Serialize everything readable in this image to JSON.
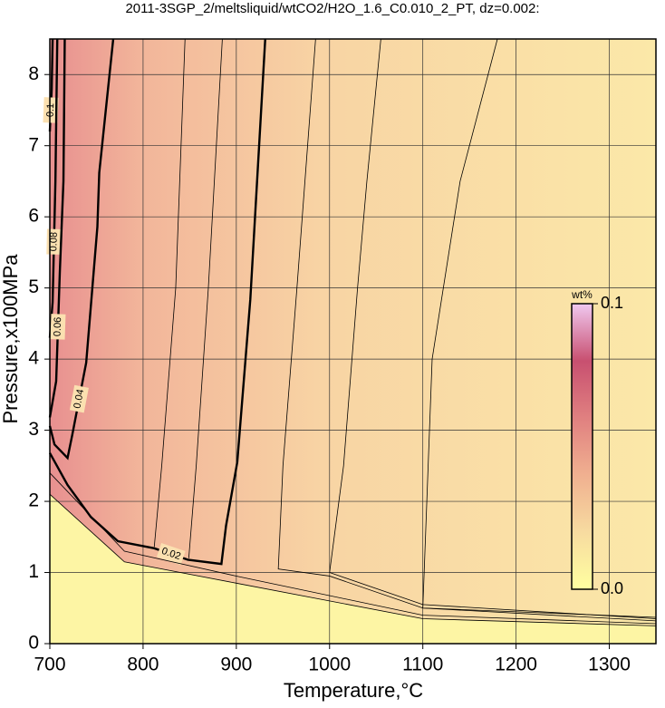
{
  "chart_data": {
    "type": "contour",
    "title": "2011-3SGP_2/meltsliquid/wtCO2/H2O_1.6_C0.010_2_PT, dz=0.002:",
    "x_label": "Temperature,°C",
    "y_label": "Pressure,x100MPa",
    "xlim": [
      700,
      1350
    ],
    "ylim": [
      0,
      8.5
    ],
    "xticks": [
      700,
      800,
      900,
      1000,
      1100,
      1200,
      1300
    ],
    "yticks": [
      0,
      1,
      2,
      3,
      4,
      5,
      6,
      7,
      8
    ],
    "grid": true,
    "contours": [
      {
        "level": 0.1,
        "bold": true,
        "x": [
          703,
          702,
          700
        ],
        "y": [
          8.5,
          7.8,
          7.2
        ]
      },
      {
        "level": 0.08,
        "bold": true,
        "x": [
          708,
          706,
          703,
          700
        ],
        "y": [
          8.5,
          6.5,
          4.8,
          4.3
        ]
      },
      {
        "level": 0.06,
        "bold": true,
        "x": [
          716,
          714.6,
          710.7,
          706.8,
          700
        ],
        "y": [
          8.5,
          6.5,
          5.22,
          3.69,
          3.18
        ]
      },
      {
        "level": 0.04,
        "bold": true,
        "x": [
          768,
          753,
          751,
          739,
          724,
          719,
          705,
          700
        ],
        "y": [
          8.5,
          6.62,
          5.86,
          3.95,
          2.93,
          2.61,
          2.8,
          3.06
        ]
      },
      {
        "level": 0.03,
        "bold": false,
        "x": [
          845,
          835,
          820,
          812
        ],
        "y": [
          8.5,
          5,
          2.5,
          1.36
        ]
      },
      {
        "level": 0.025,
        "bold": false,
        "x": [
          885,
          870,
          857,
          849
        ],
        "y": [
          8.5,
          5,
          2.5,
          1.2
        ]
      },
      {
        "level": 0.02,
        "bold": true,
        "x": [
          931,
          915,
          901,
          889,
          884,
          848,
          812,
          773,
          744,
          719,
          700
        ],
        "y": [
          8.5,
          4.84,
          2.55,
          1.66,
          1.12,
          1.18,
          1.34,
          1.44,
          1.78,
          2.23,
          2.68
        ]
      },
      {
        "level": 0.015,
        "bold": false,
        "x": [
          985,
          965,
          950,
          945,
          1000,
          1100,
          1350
        ],
        "y": [
          8.5,
          5,
          2.5,
          1.05,
          0.95,
          0.5,
          0.37
        ]
      },
      {
        "level": 0.01,
        "bold": false,
        "x": [
          1055,
          1040,
          1030,
          1015,
          1000,
          1100,
          1350
        ],
        "y": [
          8.5,
          6.5,
          5,
          2.5,
          1.0,
          0.55,
          0.35
        ]
      },
      {
        "level": 0.005,
        "bold": false,
        "x": [
          1180,
          1140,
          1110,
          1100,
          1350
        ],
        "y": [
          8.5,
          6.5,
          4,
          0.5,
          0.32
        ]
      },
      {
        "level": 0.002,
        "bold": false,
        "x": [
          700,
          780,
          900,
          1100,
          1350
        ],
        "y": [
          2.4,
          1.3,
          0.95,
          0.4,
          0.28
        ]
      },
      {
        "level": 0.001,
        "bold": false,
        "x": [
          700,
          780,
          900,
          1100,
          1350
        ],
        "y": [
          2.1,
          1.15,
          0.85,
          0.35,
          0.25
        ]
      }
    ],
    "colorbar": {
      "label": "wt%",
      "lim": [
        0,
        0.1
      ],
      "ticks": [
        {
          "value": 0,
          "label": "0.0"
        },
        0.1
      ],
      "colors": [
        "#ffffa0",
        "#f7dba0",
        "#f0b090",
        "#e08080",
        "#c85070",
        "#f0c8f0"
      ]
    }
  }
}
